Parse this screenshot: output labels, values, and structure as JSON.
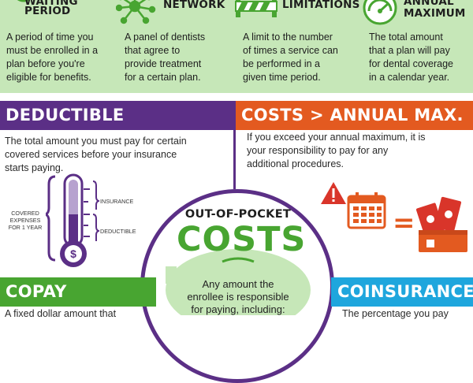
{
  "colors": {
    "green_band": "#c6e7b8",
    "green_accent": "#48a531",
    "purple": "#5b2f86",
    "orange": "#e35a20",
    "blue": "#1ea6dd",
    "dark_text": "#1e1e1e",
    "red": "#d9352a"
  },
  "top": {
    "waiting": {
      "title": "PERIOD",
      "partial_title": "WAITING",
      "icon": "clock-icon",
      "text": [
        "A period of time you",
        "must be enrolled in a",
        "plan before you're",
        "eligible for benefits."
      ]
    },
    "network": {
      "title": "NETWORK",
      "icon": "network-icon",
      "text": [
        "A panel of dentists",
        "that agree to",
        "provide treatment",
        "for a certain plan."
      ]
    },
    "limitations": {
      "title": "LIMITATIONS",
      "icon": "barrier-icon",
      "text": [
        "A limit to the number",
        "of times a service can",
        "be performed in a",
        "given time period."
      ]
    },
    "annual": {
      "title_line1": "ANNUAL",
      "title_line2": "MAXIMUM",
      "icon": "gauge-icon",
      "text": [
        "The total amount",
        "that a plan will pay",
        "for dental coverage",
        "in a calendar year."
      ]
    }
  },
  "deductible": {
    "title": "DEDUCTIBLE",
    "text": [
      "The total amount you must pay for certain",
      "covered services before your insurance",
      "starts paying."
    ],
    "labels": {
      "insurance": "INSURANCE",
      "deductible": "DEDUCTIBLE",
      "covered_1": "COVERED",
      "covered_2": "EXPENSES",
      "covered_3": "FOR 1 YEAR"
    },
    "icon": "thermometer-icon"
  },
  "costs_max": {
    "title": "COSTS > ANNUAL MAX.",
    "text": [
      "If you exceed your annual maximum, it is",
      "your responsibility to pay for any",
      "additional procedures."
    ],
    "equals": "=",
    "icons": [
      "warning-icon",
      "calendar-icon",
      "money-wallet-icon"
    ]
  },
  "oop": {
    "title_top": "OUT-OF-POCKET",
    "title_main": "COSTS",
    "text": [
      "Any amount the",
      "enrollee is responsible",
      "for paying, including:"
    ]
  },
  "copay": {
    "title": "COPAY",
    "text": "A fixed dollar amount that"
  },
  "coinsurance": {
    "title": "COINSURANCE",
    "text": "The percentage you pay"
  }
}
